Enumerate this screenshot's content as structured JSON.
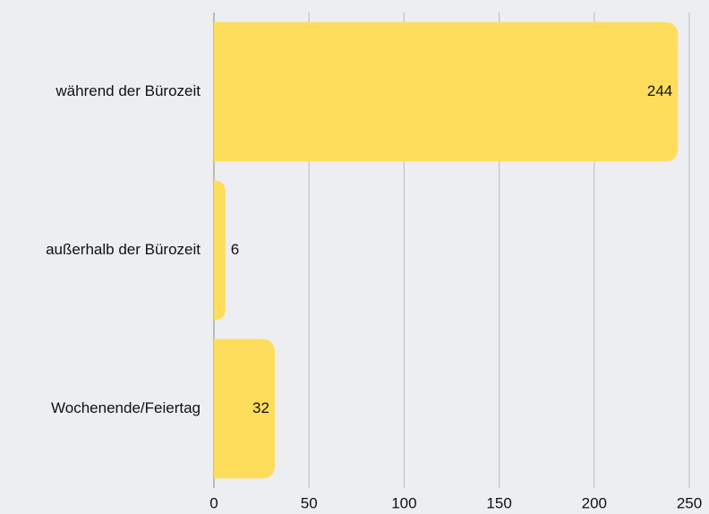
{
  "chart_data": {
    "type": "bar",
    "orientation": "horizontal",
    "categories": [
      "während der Bürozeit",
      "außerhalb der Bürozeit",
      "Wochenende/Feiertag"
    ],
    "values": [
      244,
      6,
      32
    ],
    "color": "#ffdd5c",
    "xlim": [
      0,
      250
    ],
    "xticks": [
      0,
      50,
      100,
      150,
      200,
      250
    ],
    "grid": true
  }
}
